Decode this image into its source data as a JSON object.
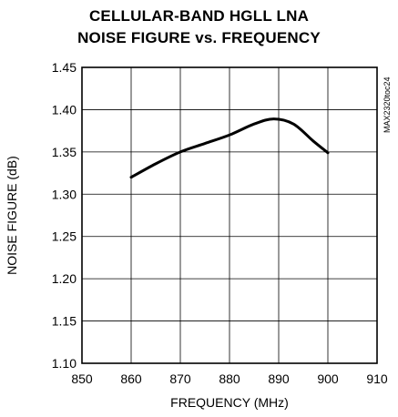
{
  "chart_data": {
    "type": "line",
    "title_lines": [
      "CELLULAR-BAND HGLL LNA",
      "NOISE FIGURE vs. FREQUENCY"
    ],
    "xlabel": "FREQUENCY (MHz)",
    "ylabel": "NOISE FIGURE (dB)",
    "xlim": [
      850,
      910
    ],
    "ylim": [
      1.1,
      1.45
    ],
    "x_ticks": [
      "850",
      "860",
      "870",
      "880",
      "890",
      "900",
      "910"
    ],
    "y_ticks": [
      "1.10",
      "1.15",
      "1.20",
      "1.25",
      "1.30",
      "1.35",
      "1.40",
      "1.45"
    ],
    "grid": true,
    "annotation": "MAX2320toc24",
    "series": [
      {
        "x": [
          860,
          865,
          870,
          875,
          880,
          885,
          889,
          893,
          897,
          900
        ],
        "values": [
          1.32,
          1.336,
          1.35,
          1.36,
          1.37,
          1.383,
          1.389,
          1.383,
          1.363,
          1.349
        ]
      }
    ]
  }
}
